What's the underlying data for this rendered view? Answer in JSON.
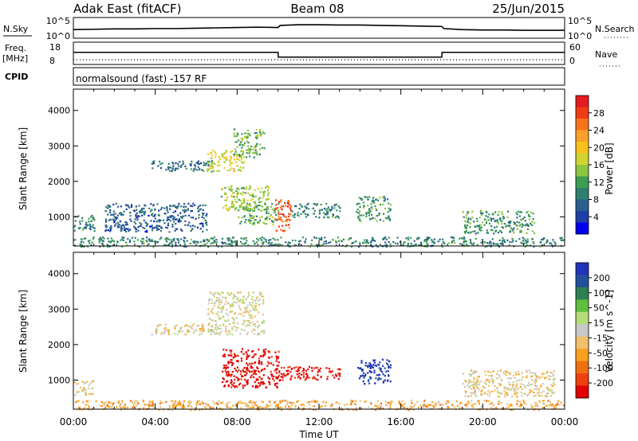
{
  "header": {
    "title": "Adak East (fitACF)",
    "beam": "Beam 08",
    "date": "25/Jun/2015"
  },
  "strips": {
    "nsky_label": "N.Sky",
    "nsky_ticks": [
      "10^5",
      "10^0"
    ],
    "nsearch_label": "N.Search",
    "nsearch_ticks": [
      "10^5",
      "10^0"
    ],
    "freq_label_1": "Freq.",
    "freq_label_2": "[MHz]",
    "freq_ticks": [
      "18",
      "8"
    ],
    "nave_label": "Nave",
    "nave_ticks": [
      "60",
      "0"
    ],
    "cpid_label": "CPID",
    "cpid_text": "normalsound (fast) -157 RF"
  },
  "panels": {
    "ylabel": "Slant Range [km]",
    "yticks": [
      "4000",
      "3000",
      "2000",
      "1000"
    ],
    "xticks": [
      "00:00",
      "04:00",
      "08:00",
      "12:00",
      "16:00",
      "20:00",
      "00:00"
    ],
    "xlabel": "Time UT"
  },
  "colorbars": {
    "power": {
      "label": "Power [dB]",
      "ticks": [
        "28",
        "24",
        "20",
        "16",
        "12",
        "8",
        "4"
      ],
      "colors": [
        "#e41a1c",
        "#f03c14",
        "#f7741a",
        "#fca02b",
        "#f7c21b",
        "#cfd431",
        "#8cc63f",
        "#3c9e54",
        "#2f7f6f",
        "#2b5f8f",
        "#1f3fa4",
        "#0000ee"
      ]
    },
    "velocity": {
      "label": "Velocity [m s^-1]",
      "ticks": [
        "200",
        "100",
        "50",
        "15",
        "-15",
        "-50",
        "-100",
        "-200"
      ],
      "colors": [
        "#2233bb",
        "#23509d",
        "#2e7f54",
        "#5fbf3c",
        "#b5dd7a",
        "#c8c8c8",
        "#f0c06a",
        "#f7a01e",
        "#f07010",
        "#ef4010",
        "#e00000"
      ]
    }
  },
  "chart_data": [
    {
      "type": "line",
      "title": "Adak East (fitACF)  Beam 08  25/Jun/2015",
      "xlabel": "",
      "x_range_hours": [
        0,
        24
      ],
      "series": [
        {
          "name": "N.Sky",
          "x": [
            0,
            1,
            2,
            3,
            4,
            5,
            6,
            7,
            8,
            9,
            10,
            10.1,
            11,
            12,
            13,
            14,
            15,
            16,
            17,
            18,
            18.1,
            19,
            20,
            21,
            22,
            23,
            24
          ],
          "values": [
            2.0,
            2.1,
            2.2,
            2.2,
            2.3,
            2.3,
            2.4,
            2.5,
            2.6,
            2.7,
            2.6,
            3.2,
            3.4,
            3.4,
            3.3,
            3.3,
            3.2,
            3.1,
            3.0,
            2.9,
            2.3,
            2.0,
            1.9,
            1.9,
            1.8,
            1.8,
            1.8
          ]
        },
        {
          "name": "Freq. [MHz]",
          "x": [
            0,
            10,
            10.01,
            18,
            18.01,
            24
          ],
          "values": [
            13.5,
            13.5,
            11.0,
            11.0,
            13.5,
            13.5
          ]
        },
        {
          "name": "Nave",
          "x": [
            0,
            24
          ],
          "values": [
            10,
            10
          ]
        }
      ],
      "yticks_nsky": [
        "10^0",
        "10^5"
      ],
      "ylim_freq": [
        8,
        18
      ],
      "ylim_nave": [
        0,
        60
      ]
    },
    {
      "type": "heatmap",
      "title": "",
      "xlabel": "Time UT",
      "ylabel": "Slant Range [km]",
      "x_range_hours": [
        0,
        24
      ],
      "ylim": [
        180,
        4600
      ],
      "xticks": [
        "00:00",
        "04:00",
        "08:00",
        "12:00",
        "16:00",
        "20:00",
        "00:00"
      ],
      "yticks": [
        1000,
        2000,
        3000,
        4000
      ],
      "colorbar": {
        "label": "Power [dB]",
        "ticks": [
          4,
          8,
          12,
          16,
          20,
          24,
          28
        ]
      },
      "patches": [
        {
          "t0": 0.0,
          "t1": 1.0,
          "r0": 600,
          "r1": 1100,
          "level": 0.3
        },
        {
          "t0": 1.5,
          "t1": 6.5,
          "r0": 600,
          "r1": 1400,
          "level": 0.2
        },
        {
          "t0": 3.8,
          "t1": 6.8,
          "r0": 2300,
          "r1": 2600,
          "level": 0.25
        },
        {
          "t0": 6.5,
          "t1": 8.3,
          "r0": 2300,
          "r1": 2900,
          "level": 0.55
        },
        {
          "t0": 7.8,
          "t1": 9.3,
          "r0": 2700,
          "r1": 3500,
          "level": 0.4
        },
        {
          "t0": 7.2,
          "t1": 9.5,
          "r0": 1200,
          "r1": 1900,
          "level": 0.5
        },
        {
          "t0": 8.0,
          "t1": 10.0,
          "r0": 800,
          "r1": 1400,
          "level": 0.4
        },
        {
          "t0": 9.8,
          "t1": 10.6,
          "r0": 600,
          "r1": 1500,
          "level": 0.85
        },
        {
          "t0": 10.6,
          "t1": 13.0,
          "r0": 1000,
          "r1": 1400,
          "level": 0.3
        },
        {
          "t0": 13.8,
          "t1": 15.5,
          "r0": 900,
          "r1": 1600,
          "level": 0.35
        },
        {
          "t0": 19.0,
          "t1": 22.5,
          "r0": 550,
          "r1": 1200,
          "level": 0.35
        },
        {
          "t0": 0.0,
          "t1": 24.0,
          "r0": 180,
          "r1": 450,
          "level": 0.3
        }
      ]
    },
    {
      "type": "heatmap",
      "title": "",
      "xlabel": "Time UT",
      "ylabel": "Slant Range [km]",
      "x_range_hours": [
        0,
        24
      ],
      "ylim": [
        180,
        4600
      ],
      "xticks": [
        "00:00",
        "04:00",
        "08:00",
        "12:00",
        "16:00",
        "20:00",
        "00:00"
      ],
      "yticks": [
        1000,
        2000,
        3000,
        4000
      ],
      "colorbar": {
        "label": "Velocity [m s^-1]",
        "ticks": [
          200,
          100,
          50,
          15,
          -15,
          -50,
          -100,
          -200
        ]
      },
      "patches": [
        {
          "t0": 0.0,
          "t1": 1.0,
          "r0": 600,
          "r1": 1000,
          "level": 0.45
        },
        {
          "t0": 3.8,
          "t1": 6.8,
          "r0": 2300,
          "r1": 2600,
          "level": 0.45
        },
        {
          "t0": 6.5,
          "t1": 9.3,
          "r0": 2300,
          "r1": 3500,
          "level": 0.5
        },
        {
          "t0": 7.2,
          "t1": 10.0,
          "r0": 800,
          "r1": 1900,
          "level": 0.0
        },
        {
          "t0": 10.0,
          "t1": 13.0,
          "r0": 1000,
          "r1": 1400,
          "level": 0.05
        },
        {
          "t0": 13.8,
          "t1": 15.5,
          "r0": 900,
          "r1": 1600,
          "level": 0.95
        },
        {
          "t0": 19.0,
          "t1": 23.5,
          "r0": 550,
          "r1": 1300,
          "level": 0.45
        },
        {
          "t0": 0.0,
          "t1": 24.0,
          "r0": 180,
          "r1": 450,
          "level": 0.35
        }
      ]
    }
  ]
}
